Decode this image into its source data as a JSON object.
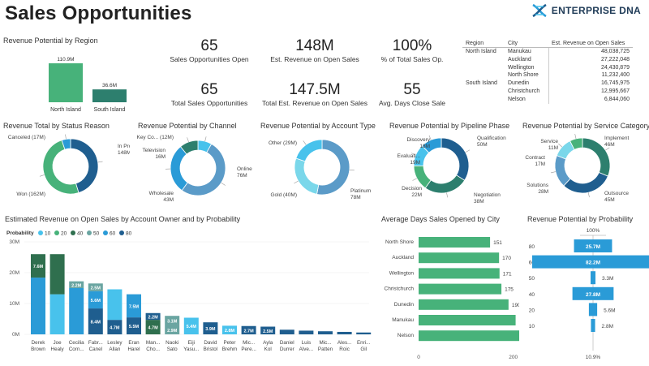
{
  "header": {
    "title": "Sales Opportunities",
    "logo_text": "ENTERPRISE DNA"
  },
  "colors": {
    "green": "#47b27a",
    "teal": "#2d7f6e",
    "darkgreen": "#2f6f4e",
    "darkblue": "#1f5e8f",
    "blue": "#2a9bd7",
    "lightblue": "#48c2ec",
    "cyan": "#7ad7ea",
    "steel": "#5b9bc8",
    "grayteal": "#6aa5a1"
  },
  "kpis": [
    {
      "value": "65",
      "label": "Sales Opportunities Open"
    },
    {
      "value": "148M",
      "label": "Est. Revenue on Open Sales"
    },
    {
      "value": "100%",
      "label": "% of Total Sales Op."
    },
    {
      "value": "65",
      "label": "Total Sales Opportunities"
    },
    {
      "value": "147.5M",
      "label": "Total Est. Revenue on Open Sales"
    },
    {
      "value": "55",
      "label": "Avg. Days Close Sale"
    }
  ],
  "matrix": {
    "headers": [
      "Region",
      "City",
      "Est. Revenue on Open Sales"
    ],
    "rows": [
      {
        "region": "North Island",
        "city": "Manukau",
        "value": "48,038,725"
      },
      {
        "region": "",
        "city": "Auckland",
        "value": "27,222,048"
      },
      {
        "region": "",
        "city": "Wellington",
        "value": "24,430,879"
      },
      {
        "region": "",
        "city": "North Shore",
        "value": "11,232,400"
      },
      {
        "region": "South Island",
        "city": "Dunedin",
        "value": "16,745,975"
      },
      {
        "region": "",
        "city": "Christchurch",
        "value": "12,995,667"
      },
      {
        "region": "",
        "city": "Nelson",
        "value": "6,844,060"
      }
    ]
  },
  "chart_data": [
    {
      "type": "bar",
      "title": "Revenue Potential by Region",
      "categories": [
        "North Island",
        "South Island"
      ],
      "values": [
        110.9,
        36.6
      ],
      "value_labels": [
        "110.9M",
        "36.6M"
      ],
      "colors": [
        "#47b27a",
        "#2d7f6e"
      ]
    },
    {
      "type": "pie",
      "title": "Revenue Total by Status Reason",
      "donut": true,
      "slices": [
        {
          "label": "In Progress",
          "display": "In Progress 148M",
          "value": 148,
          "color": "#1f5e8f"
        },
        {
          "label": "Won",
          "display": "Won (162M)",
          "value": 162,
          "color": "#47b27a"
        },
        {
          "label": "Canceled",
          "display": "Canceled (17M)",
          "value": 17,
          "color": "#2a9bd7"
        }
      ]
    },
    {
      "type": "pie",
      "title": "Revenue Potential by Channel",
      "donut": true,
      "slices": [
        {
          "label": "Key Co...",
          "display": "Key Co... (12M)",
          "value": 12,
          "color": "#48c2ec"
        },
        {
          "label": "Online",
          "display": "Online 76M",
          "value": 76,
          "color": "#5b9bc8"
        },
        {
          "label": "Wholesale",
          "display": "Wholesale 43M",
          "value": 43,
          "color": "#2a9bd7"
        },
        {
          "label": "Television",
          "display": "Television 16M",
          "value": 16,
          "color": "#2d7f6e"
        }
      ]
    },
    {
      "type": "pie",
      "title": "Revenue Potential by Account Type",
      "donut": true,
      "slices": [
        {
          "label": "Platinum",
          "display": "Platinum 78M",
          "value": 78,
          "color": "#5b9bc8"
        },
        {
          "label": "Gold",
          "display": "Gold (40M)",
          "value": 40,
          "color": "#7ad7ea"
        },
        {
          "label": "Other",
          "display": "Other (29M)",
          "value": 29,
          "color": "#48c2ec"
        }
      ]
    },
    {
      "type": "pie",
      "title": "Revenue Potential by Pipeline Phase",
      "donut": true,
      "slices": [
        {
          "label": "Qualification",
          "display": "Qualification 50M",
          "value": 50,
          "color": "#1f5e8f"
        },
        {
          "label": "Negotiation",
          "display": "Negotiation 38M",
          "value": 38,
          "color": "#2d7f6e"
        },
        {
          "label": "Decision",
          "display": "Decision 22M",
          "value": 22,
          "color": "#47b27a"
        },
        {
          "label": "Evaluati...",
          "display": "Evaluati... 19M",
          "value": 19,
          "color": "#48c2ec"
        },
        {
          "label": "Discovery",
          "display": "Discovery 18M",
          "value": 18,
          "color": "#2a9bd7"
        }
      ]
    },
    {
      "type": "pie",
      "title": "Revenue Potential by Service Category",
      "donut": true,
      "slices": [
        {
          "label": "Implement",
          "display": "Implement 46M",
          "value": 46,
          "color": "#2d7f6e"
        },
        {
          "label": "Outsource",
          "display": "Outsource 45M",
          "value": 45,
          "color": "#1f5e8f"
        },
        {
          "label": "Solutions",
          "display": "Solutions 28M",
          "value": 28,
          "color": "#5b9bc8"
        },
        {
          "label": "Contract",
          "display": "Contract 17M",
          "value": 17,
          "color": "#7ad7ea"
        },
        {
          "label": "Service",
          "display": "Service 11M",
          "value": 11,
          "color": "#47b27a"
        }
      ]
    },
    {
      "type": "bar",
      "stacked": true,
      "title": "Estimated Revenue on Open Sales by Account Owner and by Probability",
      "legend_title": "Probability",
      "legend": [
        {
          "name": "10",
          "color": "#48c2ec"
        },
        {
          "name": "20",
          "color": "#47b27a"
        },
        {
          "name": "40",
          "color": "#2f6f4e"
        },
        {
          "name": "50",
          "color": "#6aa5a1"
        },
        {
          "name": "60",
          "color": "#2a9bd7"
        },
        {
          "name": "80",
          "color": "#1f5e8f"
        }
      ],
      "ylim": [
        0,
        30
      ],
      "yticks": [
        "0M",
        "10M",
        "20M",
        "30M"
      ],
      "categories": [
        "Derek Brown",
        "Joe Healy",
        "Cecilia Corn...",
        "Fabr... Canel",
        "Lesley Allan",
        "Eran Harel",
        "Man... Cho...",
        "Naoki Sato",
        "Eiji Yasu...",
        "David Bristol",
        "Peter Brehm",
        "Mic... Pere...",
        "Ayla Kol",
        "Daniel Durrer",
        "Luis Alve...",
        "Mic... Patten",
        "Ales... Roic",
        "Enri... Gil"
      ],
      "bars": [
        {
          "total": 26,
          "segments": [
            {
              "v": 18.4,
              "c": "#2a9bd7"
            },
            {
              "v": 7.6,
              "c": "#2f6f4e",
              "label": "7.6M"
            }
          ]
        },
        {
          "total": 26,
          "segments": [
            {
              "v": 13,
              "c": "#48c2ec"
            },
            {
              "v": 13,
              "c": "#2f6f4e"
            }
          ]
        },
        {
          "total": 17.2,
          "segments": [
            {
              "v": 15,
              "c": "#2a9bd7"
            },
            {
              "v": 2.2,
              "c": "#6aa5a1",
              "label": "2.2M"
            }
          ]
        },
        {
          "total": 16.5,
          "segments": [
            {
              "v": 8.4,
              "c": "#1f5e8f",
              "label": "8.4M"
            },
            {
              "v": 5.6,
              "c": "#2a9bd7",
              "label": "5.6M"
            },
            {
              "v": 2.5,
              "c": "#6aa5a1",
              "label": "2.5M"
            }
          ]
        },
        {
          "total": 14.6,
          "segments": [
            {
              "v": 4.7,
              "c": "#1f5e8f",
              "label": "4.7M"
            },
            {
              "v": 9.9,
              "c": "#48c2ec"
            }
          ]
        },
        {
          "total": 13,
          "segments": [
            {
              "v": 5.5,
              "c": "#1f5e8f",
              "label": "5.5M"
            },
            {
              "v": 7.5,
              "c": "#2a9bd7",
              "label": "7.5M"
            }
          ]
        },
        {
          "total": 6.9,
          "segments": [
            {
              "v": 4.7,
              "c": "#2f6f4e",
              "label": "4.7M"
            },
            {
              "v": 2.2,
              "c": "#1f5e8f",
              "label": "2.2M"
            }
          ]
        },
        {
          "total": 6,
          "segments": [
            {
              "v": 2.9,
              "c": "#6aa5a1",
              "label": "2.9M"
            },
            {
              "v": 3.1,
              "c": "#6aa5a1",
              "label": "3.1M"
            }
          ]
        },
        {
          "total": 5.4,
          "segments": [
            {
              "v": 5.4,
              "c": "#48c2ec",
              "label": "5.4M"
            }
          ]
        },
        {
          "total": 3.9,
          "segments": [
            {
              "v": 3.9,
              "c": "#1f5e8f",
              "label": "3.9M"
            }
          ]
        },
        {
          "total": 2.8,
          "segments": [
            {
              "v": 2.8,
              "c": "#48c2ec",
              "label": "2.8M"
            }
          ]
        },
        {
          "total": 2.7,
          "segments": [
            {
              "v": 2.7,
              "c": "#1f5e8f",
              "label": "2.7M"
            }
          ]
        },
        {
          "total": 2.5,
          "segments": [
            {
              "v": 2.5,
              "c": "#1f5e8f",
              "label": "2.5M"
            }
          ]
        },
        {
          "total": 1.5,
          "segments": [
            {
              "v": 1.5,
              "c": "#1f5e8f"
            }
          ]
        },
        {
          "total": 1.2,
          "segments": [
            {
              "v": 1.2,
              "c": "#1f5e8f"
            }
          ]
        },
        {
          "total": 1.0,
          "segments": [
            {
              "v": 1.0,
              "c": "#1f5e8f"
            }
          ]
        },
        {
          "total": 0.8,
          "segments": [
            {
              "v": 0.8,
              "c": "#1f5e8f"
            }
          ]
        },
        {
          "total": 0.6,
          "segments": [
            {
              "v": 0.6,
              "c": "#1f5e8f"
            }
          ]
        }
      ]
    },
    {
      "type": "bar",
      "orientation": "horizontal",
      "title": "Average Days Sales Opened by City",
      "categories": [
        "North Shore",
        "Auckland",
        "Wellington",
        "Christchurch",
        "Dunedin",
        "Manukau",
        "Nelson"
      ],
      "values": [
        151,
        170,
        171,
        175,
        190,
        205,
        227
      ],
      "xticks": [
        "0",
        "200"
      ],
      "xlim": [
        0,
        240
      ],
      "color": "#47b27a"
    },
    {
      "type": "bar",
      "orientation": "funnel",
      "title": "Revenue Potential by Probability",
      "categories": [
        "80",
        "60",
        "50",
        "40",
        "20",
        "10"
      ],
      "values": [
        25.7,
        82.2,
        3.3,
        27.8,
        5.6,
        2.8
      ],
      "value_labels": [
        "25.7M",
        "82.2M",
        "3.3M",
        "27.8M",
        "5.6M",
        "2.8M"
      ],
      "top_label": "100%",
      "bottom_label": "10.9%",
      "color": "#2a9bd7"
    }
  ]
}
